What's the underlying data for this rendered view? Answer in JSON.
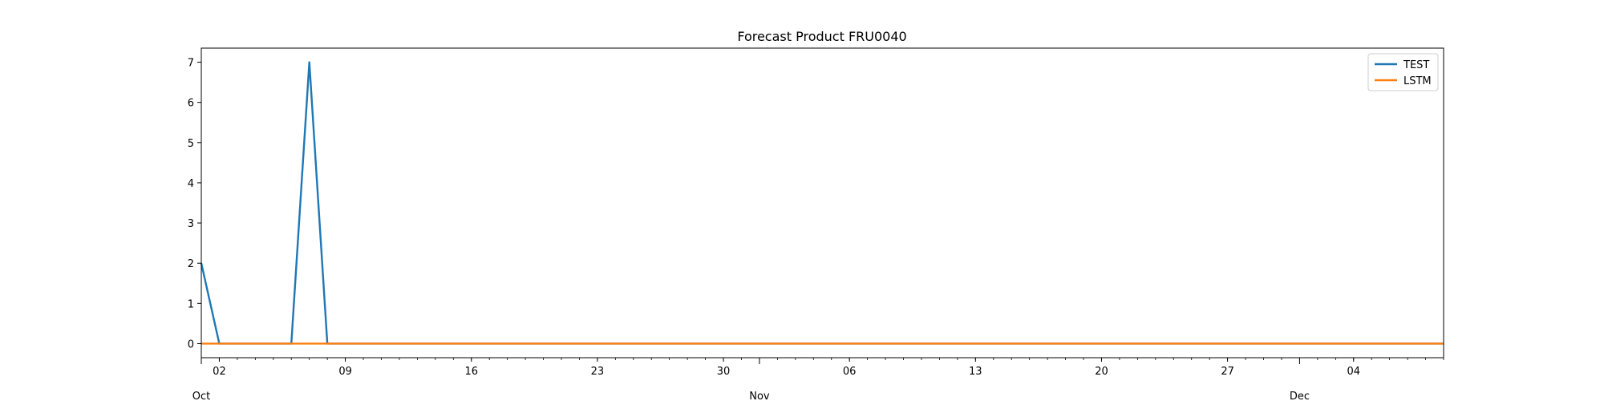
{
  "chart_data": {
    "type": "line",
    "title": "Forecast Product FRU0040",
    "xlabel": "",
    "ylabel": "",
    "x_axis": {
      "type": "date",
      "start": "2023-10-01",
      "end": "2023-12-09",
      "major_ticks": [
        {
          "date": "2023-10-02",
          "label": "02"
        },
        {
          "date": "2023-10-09",
          "label": "09"
        },
        {
          "date": "2023-10-16",
          "label": "16"
        },
        {
          "date": "2023-10-23",
          "label": "23"
        },
        {
          "date": "2023-10-30",
          "label": "30"
        },
        {
          "date": "2023-11-06",
          "label": "06"
        },
        {
          "date": "2023-11-13",
          "label": "13"
        },
        {
          "date": "2023-11-20",
          "label": "20"
        },
        {
          "date": "2023-11-27",
          "label": "27"
        },
        {
          "date": "2023-12-04",
          "label": "04"
        }
      ],
      "month_labels": [
        {
          "date": "2023-10-01",
          "label": "Oct"
        },
        {
          "date": "2023-11-01",
          "label": "Nov"
        },
        {
          "date": "2023-12-01",
          "label": "Dec"
        }
      ]
    },
    "y_axis": {
      "ylim": [
        -0.35,
        7.35
      ],
      "ticks": [
        0,
        1,
        2,
        3,
        4,
        5,
        6,
        7
      ]
    },
    "legend": {
      "position": "top-right"
    },
    "grid": false,
    "series": [
      {
        "name": "TEST",
        "color": "#1f77b4",
        "points": [
          {
            "x": "2023-10-01",
            "y": 2
          },
          {
            "x": "2023-10-02",
            "y": 0
          },
          {
            "x": "2023-10-06",
            "y": 0
          },
          {
            "x": "2023-10-07",
            "y": 7
          },
          {
            "x": "2023-10-08",
            "y": 0
          },
          {
            "x": "2023-12-09",
            "y": 0
          }
        ]
      },
      {
        "name": "LSTM",
        "color": "#ff7f0e",
        "points": [
          {
            "x": "2023-10-01",
            "y": 0
          },
          {
            "x": "2023-12-09",
            "y": 0
          }
        ]
      }
    ]
  }
}
